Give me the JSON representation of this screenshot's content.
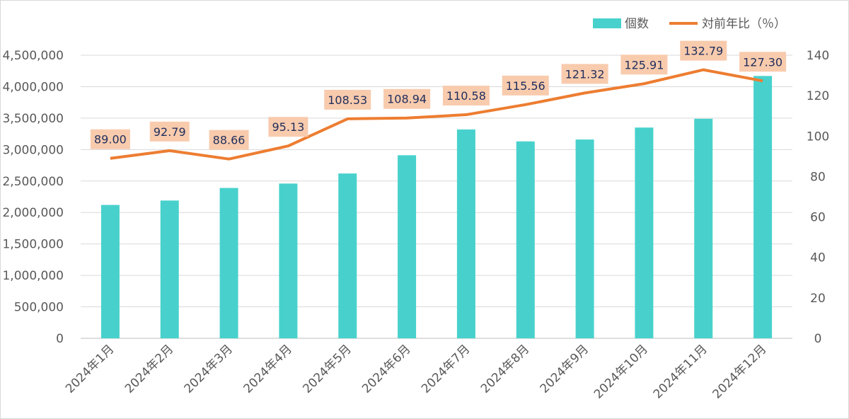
{
  "chart_data": {
    "type": "bar",
    "categories": [
      "2024年1月",
      "2024年2月",
      "2024年3月",
      "2024年4月",
      "2024年5月",
      "2024年6月",
      "2024年7月",
      "2024年8月",
      "2024年9月",
      "2024年10月",
      "2024年11月",
      "2024年12月"
    ],
    "series": [
      {
        "name": "個数",
        "type": "bar",
        "axis": "left",
        "color": "#48D1CC",
        "values": [
          2120000,
          2190000,
          2390000,
          2460000,
          2620000,
          2910000,
          3320000,
          3130000,
          3160000,
          3350000,
          3490000,
          4170000
        ]
      },
      {
        "name": "対前年比（％）",
        "type": "line",
        "axis": "right",
        "color": "#ED7D31",
        "values": [
          89.0,
          92.79,
          88.66,
          95.13,
          108.53,
          108.94,
          110.58,
          115.56,
          121.32,
          125.91,
          132.79,
          127.3
        ],
        "labels": [
          "89.00",
          "92.79",
          "88.66",
          "95.13",
          "108.53",
          "108.94",
          "110.58",
          "115.56",
          "121.32",
          "125.91",
          "132.79",
          "127.30"
        ],
        "label_box_color": "#F8CBAD"
      }
    ],
    "y_left": {
      "range": [
        0,
        4500000
      ],
      "ticks": [
        0,
        500000,
        1000000,
        1500000,
        2000000,
        2500000,
        3000000,
        3500000,
        4000000,
        4500000
      ],
      "tick_labels": [
        "0",
        "500,000",
        "1,000,000",
        "1,500,000",
        "2,000,000",
        "2,500,000",
        "3,000,000",
        "3,500,000",
        "4,000,000",
        "4,500,000"
      ]
    },
    "y_right": {
      "range": [
        0,
        140
      ],
      "ticks": [
        0,
        20,
        40,
        60,
        80,
        100,
        120,
        140
      ],
      "tick_labels": [
        "0",
        "20",
        "40",
        "60",
        "80",
        "100",
        "120",
        "140"
      ]
    },
    "title": "",
    "xlabel": "",
    "ylabel": "",
    "grid": true,
    "legend_position": "top-right"
  }
}
